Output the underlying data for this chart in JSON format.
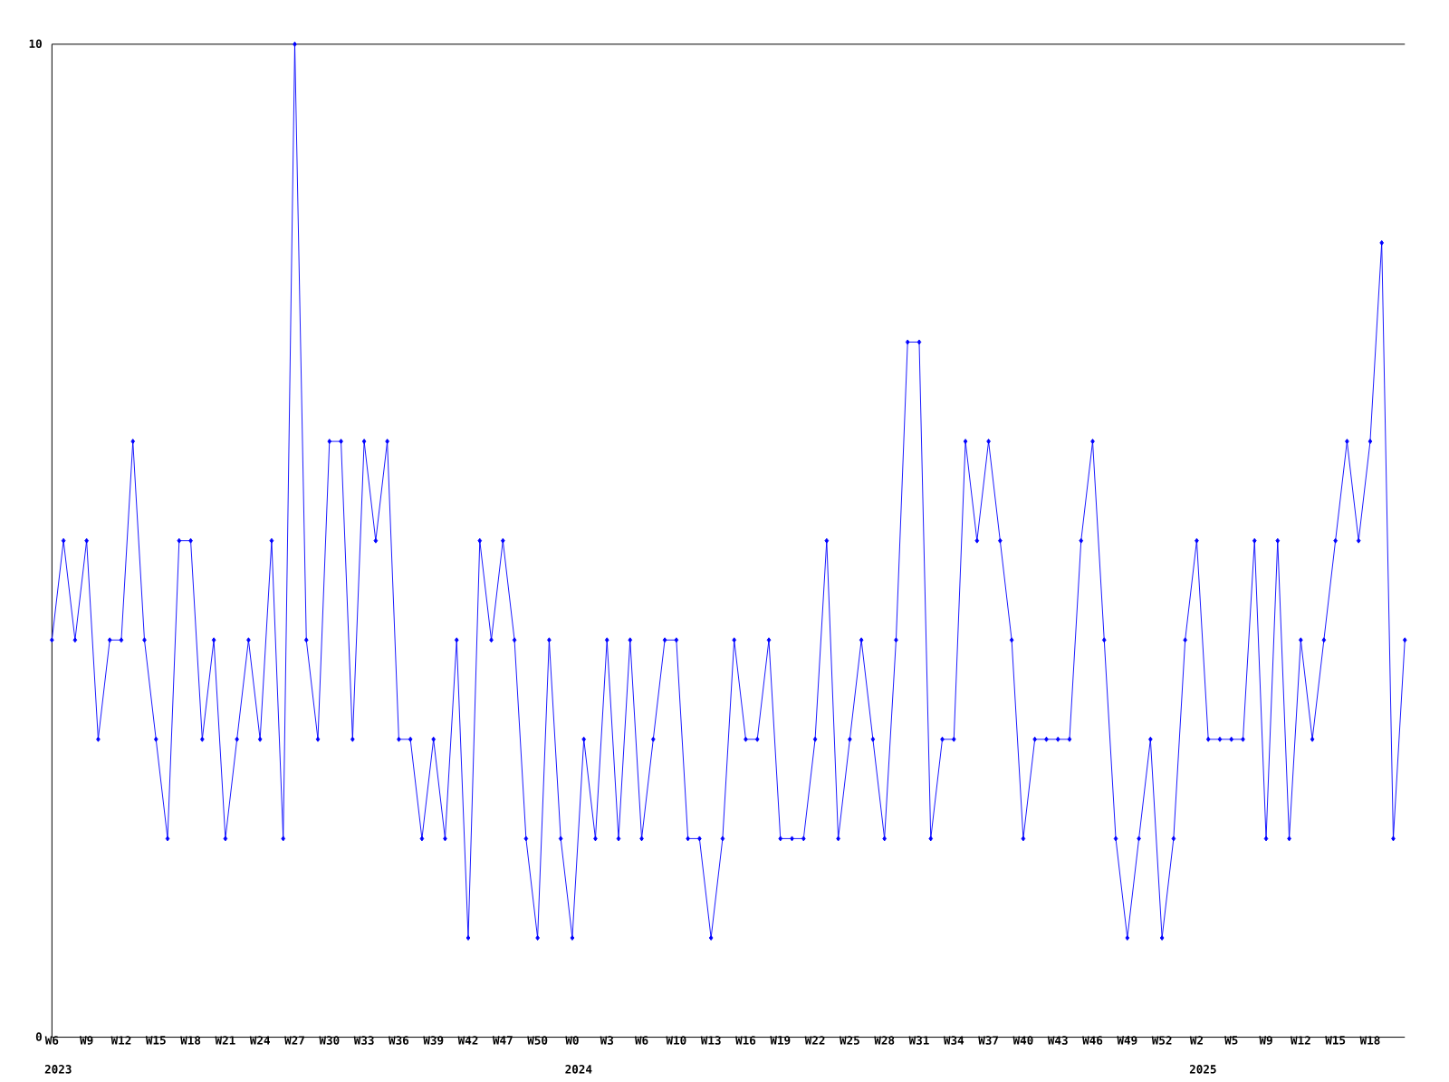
{
  "chart_data": {
    "type": "line",
    "categories": [
      "W6",
      null,
      null,
      "W9",
      null,
      null,
      "W12",
      null,
      null,
      "W15",
      null,
      null,
      "W18",
      null,
      null,
      "W21",
      null,
      null,
      "W24",
      null,
      null,
      "W27",
      null,
      null,
      "W30",
      null,
      null,
      "W33",
      null,
      null,
      "W36",
      null,
      null,
      "W39",
      null,
      null,
      "W42",
      null,
      null,
      "W47",
      null,
      null,
      "W50",
      null,
      null,
      "W0",
      null,
      null,
      "W3",
      null,
      null,
      "W6",
      null,
      null,
      "W10",
      null,
      null,
      "W13",
      null,
      null,
      "W16",
      null,
      null,
      "W19",
      null,
      null,
      "W22",
      null,
      null,
      "W25",
      null,
      null,
      "W28",
      null,
      null,
      "W31",
      null,
      null,
      "W34",
      null,
      null,
      "W37",
      null,
      null,
      "W40",
      null,
      null,
      "W43",
      null,
      null,
      "W46",
      null,
      null,
      "W49",
      null,
      null,
      "W52",
      null,
      null,
      "W2",
      null,
      null,
      "W5",
      null,
      null,
      "W9",
      null,
      null,
      "W12",
      null,
      null,
      "W15",
      null,
      null,
      "W18",
      null,
      null,
      null
    ],
    "values": [
      4,
      5,
      4,
      5,
      3,
      4,
      4,
      6,
      4,
      3,
      2,
      5,
      5,
      3,
      4,
      2,
      3,
      4,
      3,
      5,
      2,
      10,
      4,
      3,
      6,
      6,
      3,
      6,
      5,
      6,
      3,
      3,
      2,
      3,
      2,
      4,
      1,
      5,
      4,
      5,
      4,
      2,
      1,
      4,
      2,
      1,
      3,
      2,
      4,
      2,
      4,
      2,
      3,
      4,
      4,
      2,
      2,
      1,
      2,
      4,
      3,
      3,
      4,
      2,
      2,
      2,
      3,
      5,
      2,
      3,
      4,
      3,
      2,
      4,
      7,
      7,
      2,
      3,
      3,
      6,
      5,
      6,
      5,
      4,
      2,
      3,
      3,
      3,
      3,
      5,
      6,
      4,
      2,
      1,
      2,
      3,
      1,
      2,
      4,
      5,
      3,
      3,
      3,
      3,
      5,
      2,
      5,
      2,
      4,
      3,
      4,
      5,
      6,
      5,
      6,
      8,
      2,
      4
    ],
    "color": "#0000ff",
    "marker": "diamond",
    "line_style": "solid",
    "ylim": [
      0,
      10
    ],
    "yticks": [
      0,
      10
    ],
    "annotations": [
      "2023",
      "2024",
      "2025"
    ]
  }
}
